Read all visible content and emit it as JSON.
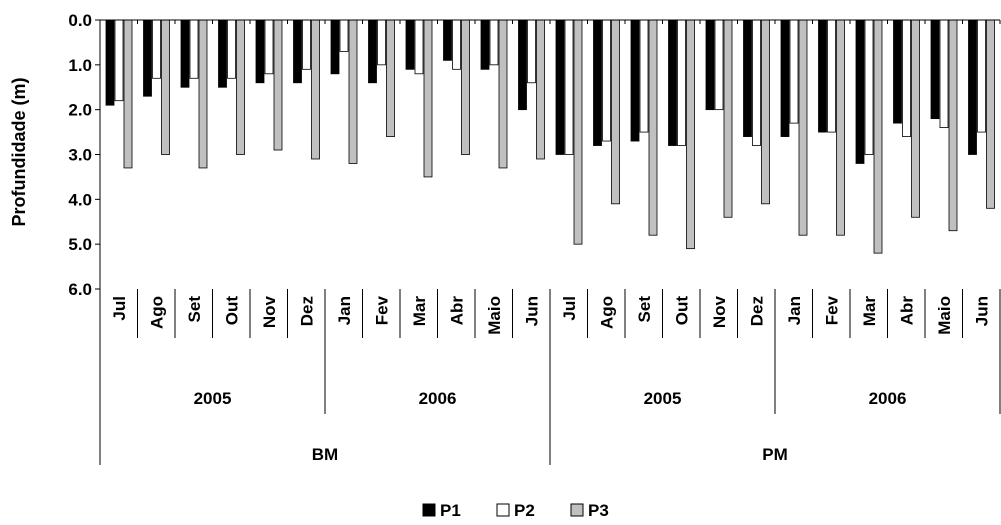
{
  "chart_data": {
    "type": "bar",
    "title": "",
    "xlabel": "",
    "ylabel": "Profundidade (m)",
    "ylim": [
      0,
      6
    ],
    "y_inverted": true,
    "y_ticks": [
      "0.0",
      "1.0",
      "2.0",
      "3.0",
      "4.0",
      "5.0",
      "6.0"
    ],
    "legend_position": "bottom",
    "categories": [
      "Jul",
      "Ago",
      "Set",
      "Out",
      "Nov",
      "Dez",
      "Jan",
      "Fev",
      "Mar",
      "Abr",
      "Maio",
      "Jun",
      "Jul",
      "Ago",
      "Set",
      "Out",
      "Nov",
      "Dez",
      "Jan",
      "Fev",
      "Mar",
      "Abr",
      "Maio",
      "Jun"
    ],
    "years": [
      {
        "label": "2005",
        "span": 6
      },
      {
        "label": "2006",
        "span": 6
      },
      {
        "label": "2005",
        "span": 6
      },
      {
        "label": "2006",
        "span": 6
      }
    ],
    "groups": [
      {
        "label": "BM",
        "span": 12
      },
      {
        "label": "PM",
        "span": 12
      }
    ],
    "series": [
      {
        "name": "P1",
        "color": "#000000",
        "values": [
          1.9,
          1.7,
          1.5,
          1.5,
          1.4,
          1.4,
          1.2,
          1.4,
          1.1,
          0.9,
          1.1,
          2.0,
          3.0,
          2.8,
          2.7,
          2.8,
          2.0,
          2.6,
          2.6,
          2.5,
          3.2,
          2.3,
          2.2,
          3.0
        ]
      },
      {
        "name": "P2",
        "color": "#ffffff",
        "values": [
          1.8,
          1.3,
          1.3,
          1.3,
          1.2,
          1.1,
          0.7,
          1.0,
          1.2,
          1.1,
          1.0,
          1.4,
          3.0,
          2.7,
          2.5,
          2.8,
          2.0,
          2.8,
          2.3,
          2.5,
          3.0,
          2.6,
          2.4,
          2.5
        ]
      },
      {
        "name": "P3",
        "color": "#c0c0c0",
        "values": [
          3.3,
          3.0,
          3.3,
          3.0,
          2.9,
          3.1,
          3.2,
          2.6,
          3.5,
          3.0,
          3.3,
          3.1,
          5.0,
          4.1,
          4.8,
          5.1,
          4.4,
          4.1,
          4.8,
          4.8,
          5.2,
          4.4,
          4.7,
          4.2
        ]
      }
    ]
  }
}
